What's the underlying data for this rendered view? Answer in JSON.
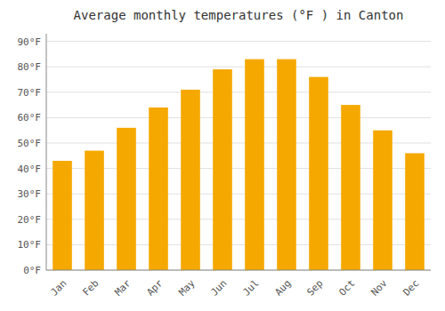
{
  "chart_data": {
    "type": "bar",
    "title": "Average monthly temperatures (°F ) in Canton",
    "categories": [
      "Jan",
      "Feb",
      "Mar",
      "Apr",
      "May",
      "Jun",
      "Jul",
      "Aug",
      "Sep",
      "Oct",
      "Nov",
      "Dec"
    ],
    "values": [
      43,
      47,
      56,
      64,
      71,
      79,
      83,
      83,
      76,
      65,
      55,
      46
    ],
    "color": "#F5A800",
    "ylim": [
      0,
      93
    ],
    "yticks": [
      {
        "value": 0,
        "label": "0°F"
      },
      {
        "value": 10,
        "label": "10°F"
      },
      {
        "value": 20,
        "label": "20°F"
      },
      {
        "value": 30,
        "label": "30°F"
      },
      {
        "value": 40,
        "label": "40°F"
      },
      {
        "value": 50,
        "label": "50°F"
      },
      {
        "value": 60,
        "label": "60°F"
      },
      {
        "value": 70,
        "label": "70°F"
      },
      {
        "value": 80,
        "label": "80°F"
      },
      {
        "value": 90,
        "label": "90°F"
      }
    ],
    "grid": true
  }
}
